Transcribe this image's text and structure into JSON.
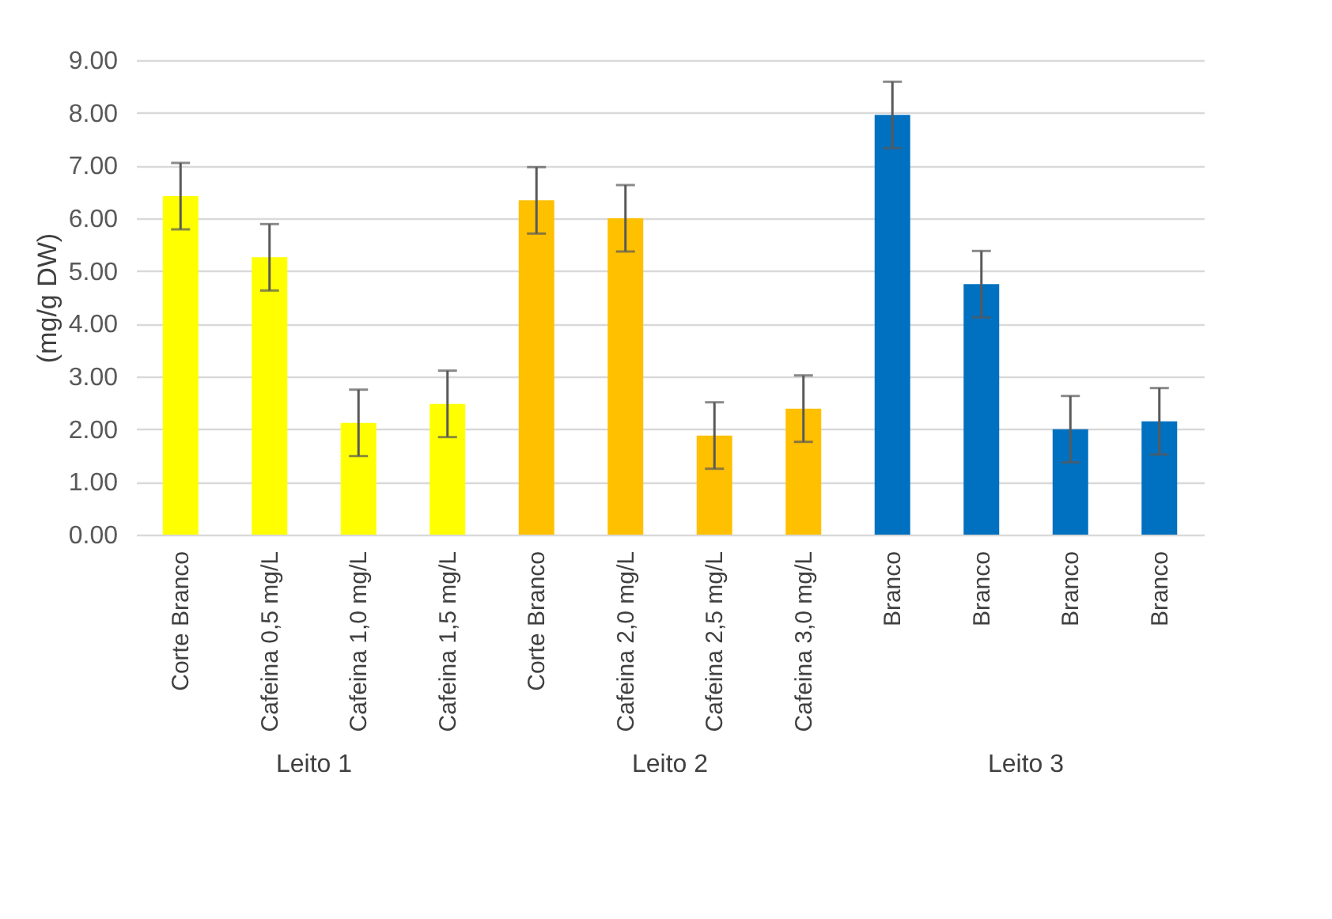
{
  "chart_data": {
    "type": "bar",
    "ylabel": "(mg/g DW)",
    "categories": [
      "Corte Branco",
      "Cafeina 0,5 mg/L",
      "Cafeina 1,0 mg/L",
      "Cafeina 1,5 mg/L",
      "Corte Branco",
      "Cafeina 2,0 mg/L",
      "Cafeina 2,5 mg/L",
      "Cafeina 3,0 mg/L",
      "Branco",
      "Branco",
      "Branco",
      "Branco"
    ],
    "values": [
      6.42,
      5.26,
      2.12,
      2.48,
      6.34,
      6.0,
      1.88,
      2.39,
      7.96,
      4.75,
      2.0,
      2.15
    ],
    "errors": [
      0.63,
      0.63,
      0.63,
      0.63,
      0.63,
      0.63,
      0.63,
      0.63,
      0.63,
      0.63,
      0.63,
      0.63
    ],
    "colors": [
      "#ffff00",
      "#ffff00",
      "#ffff00",
      "#ffff00",
      "#ffc000",
      "#ffc000",
      "#ffc000",
      "#ffc000",
      "#0070c0",
      "#0070c0",
      "#0070c0",
      "#0070c0"
    ],
    "annotations": [
      "Leito 1",
      "Leito 2",
      "Leito 3"
    ],
    "ylim": [
      0,
      9
    ],
    "yticks": [
      {
        "value": 0,
        "label": "0.00"
      },
      {
        "value": 1,
        "label": "1.00"
      },
      {
        "value": 2,
        "label": "2.00"
      },
      {
        "value": 3,
        "label": "3.00"
      },
      {
        "value": 4,
        "label": "4.00"
      },
      {
        "value": 5,
        "label": "5.00"
      },
      {
        "value": 6,
        "label": "6.00"
      },
      {
        "value": 7,
        "label": "7.00"
      },
      {
        "value": 8,
        "label": "8.00"
      },
      {
        "value": 9,
        "label": "9.00"
      }
    ],
    "grid": "y"
  }
}
